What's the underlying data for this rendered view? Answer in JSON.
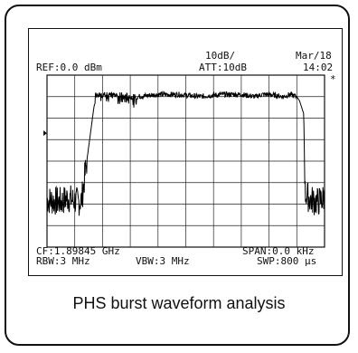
{
  "screen": {
    "ref": "REF:0.0 dBm",
    "scale": "10dB/",
    "att": "ATT:10dB",
    "date": "Mar/18",
    "time": "14:02",
    "marker": "*",
    "cf": "CF:1.89845 GHz",
    "rbw": "RBW:3 MHz",
    "vbw": "VBW:3 MHz",
    "span": "SPAN:0.0 kHz",
    "swp": "SWP:800 µs"
  },
  "caption": "PHS burst waveform analysis",
  "chart_data": {
    "type": "line",
    "title": "",
    "xlabel": "",
    "ylabel": "",
    "xlim": [
      0,
      800
    ],
    "ylim": [
      -80,
      0
    ],
    "grid": true,
    "series": [
      {
        "x": [
          0,
          40,
          60,
          72,
          90,
          100,
          140,
          200,
          260,
          320,
          380,
          440,
          500,
          560,
          600,
          620,
          640,
          680,
          700,
          720,
          728,
          740,
          744,
          760,
          780,
          800
        ],
        "values": [
          -58,
          -59,
          -57,
          -58,
          -59,
          -58,
          -9,
          -9,
          -10,
          -9,
          -9,
          -10,
          -9,
          -9,
          -10,
          -9,
          -9,
          -10,
          -9,
          -10,
          -12,
          -18,
          -55,
          -58,
          -59,
          -57
        ]
      }
    ]
  }
}
